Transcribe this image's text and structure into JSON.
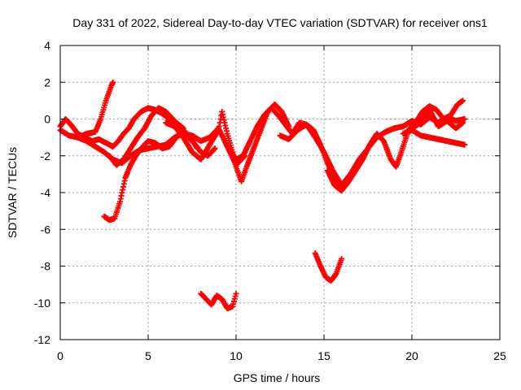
{
  "chart_data": {
    "type": "scatter",
    "title": "Day 331 of 2022, Sidereal Day-to-day VTEC variation (SDTVAR) for receiver ons1",
    "xlabel": "GPS time / hours",
    "ylabel": "SDTVAR / TECUs",
    "xlim": [
      0,
      25
    ],
    "ylim": [
      -12,
      4
    ],
    "xticks": [
      0,
      5,
      10,
      15,
      20,
      25
    ],
    "yticks": [
      -12,
      -10,
      -8,
      -6,
      -4,
      -2,
      0,
      2,
      4
    ],
    "grid": true,
    "marker": "+",
    "color": "#ff0000",
    "series": [
      {
        "name": "track-a",
        "x": [
          0.0,
          0.5,
          1.0,
          1.5,
          2.0,
          2.3,
          2.6,
          2.9,
          3.0
        ],
        "y": [
          -0.6,
          -0.9,
          -1.0,
          -0.8,
          -0.7,
          0.0,
          1.0,
          1.8,
          2.0
        ]
      },
      {
        "name": "track-b",
        "x": [
          0.0,
          0.3,
          0.6,
          1.0,
          1.4,
          1.8,
          2.2,
          2.6,
          3.0,
          3.3,
          3.6,
          3.9,
          4.2,
          4.6,
          5.0,
          5.4,
          5.8,
          6.2,
          6.6,
          7.0
        ],
        "y": [
          -0.4,
          0.0,
          -0.3,
          -0.8,
          -1.0,
          -1.2,
          -1.1,
          -1.3,
          -1.5,
          -1.2,
          -0.8,
          -0.5,
          0.0,
          0.4,
          0.6,
          0.5,
          0.3,
          0.0,
          -0.2,
          -0.5
        ]
      },
      {
        "name": "track-c",
        "x": [
          2.5,
          2.8,
          3.1,
          3.4,
          3.7,
          4.0,
          4.3,
          4.6,
          5.0,
          5.4,
          5.8,
          6.2,
          6.6,
          7.0,
          7.4,
          7.8
        ],
        "y": [
          -5.3,
          -5.5,
          -5.4,
          -4.5,
          -3.2,
          -2.5,
          -2.0,
          -1.6,
          -1.2,
          -1.3,
          -1.6,
          -1.5,
          -1.0,
          -0.6,
          -1.0,
          -1.6
        ]
      },
      {
        "name": "track-d",
        "x": [
          2.8,
          3.2,
          3.6,
          4.0,
          4.4,
          4.8,
          5.2,
          5.6,
          6.0,
          6.4,
          6.8,
          7.2,
          7.6,
          8.0,
          8.4,
          8.8
        ],
        "y": [
          -2.0,
          -2.5,
          -2.2,
          -1.6,
          -1.0,
          -0.5,
          0.2,
          0.6,
          0.4,
          0.0,
          -0.4,
          -0.9,
          -1.3,
          -1.8,
          -2.0,
          -1.6
        ]
      },
      {
        "name": "track-e",
        "x": [
          1.0,
          1.5,
          2.0,
          2.5,
          3.0,
          3.5,
          4.0,
          4.5,
          5.0,
          5.5,
          6.0,
          6.5,
          7.0,
          7.5,
          8.0,
          8.5,
          9.0,
          9.5,
          10.0,
          10.5
        ],
        "y": [
          -1.0,
          -1.2,
          -1.5,
          -1.8,
          -2.2,
          -2.4,
          -2.0,
          -1.7,
          -1.6,
          -1.5,
          -1.4,
          -1.0,
          -0.8,
          -0.9,
          -1.2,
          -1.0,
          -0.5,
          -1.5,
          -2.5,
          -2.0
        ]
      },
      {
        "name": "track-f",
        "x": [
          6.0,
          6.5,
          7.0,
          7.5,
          8.0,
          8.5,
          9.0,
          9.2,
          9.5,
          9.8,
          10.0,
          10.3,
          10.6,
          11.0,
          11.4,
          11.8,
          12.2,
          12.6,
          13.0
        ],
        "y": [
          -0.2,
          -0.4,
          -1.0,
          -1.8,
          -2.2,
          -1.4,
          -0.6,
          0.4,
          -0.8,
          -1.8,
          -2.6,
          -3.4,
          -2.6,
          -1.6,
          -0.6,
          0.4,
          0.8,
          0.4,
          -0.4
        ]
      },
      {
        "name": "track-g",
        "x": [
          9.6,
          10.0,
          10.4,
          10.8,
          11.2,
          11.6,
          12.0,
          12.4,
          12.8,
          13.2,
          13.6,
          14.0,
          14.4,
          14.8,
          15.2,
          15.6,
          16.0,
          16.4
        ],
        "y": [
          -1.6,
          -2.2,
          -2.0,
          -1.2,
          -0.4,
          0.2,
          0.6,
          0.2,
          -0.3,
          -0.8,
          -0.2,
          -0.3,
          -0.6,
          -1.4,
          -2.4,
          -3.2,
          -3.8,
          -3.2
        ]
      },
      {
        "name": "track-h",
        "x": [
          12.5,
          13.0,
          13.5,
          14.0,
          14.5,
          15.0,
          15.5,
          16.0,
          16.5,
          17.0,
          17.5,
          18.0,
          18.5,
          19.0,
          19.5,
          20.0,
          20.5,
          21.0,
          21.5,
          22.0,
          22.5,
          23.0
        ],
        "y": [
          -0.9,
          -1.1,
          -0.6,
          -0.3,
          -1.0,
          -1.8,
          -2.8,
          -3.6,
          -3.0,
          -2.2,
          -1.6,
          -1.0,
          -0.7,
          -0.5,
          -0.4,
          -0.1,
          -0.3,
          0.1,
          -0.2,
          0.1,
          -0.1,
          0.0
        ]
      },
      {
        "name": "track-i",
        "x": [
          15.2,
          15.6,
          16.0,
          16.4,
          16.8,
          17.2,
          17.6,
          18.0,
          18.4,
          18.8,
          19.1,
          19.4,
          19.8,
          20.2,
          20.6,
          21.0,
          21.4,
          21.8,
          22.2,
          22.6,
          22.9
        ],
        "y": [
          -2.8,
          -3.6,
          -3.9,
          -3.4,
          -2.8,
          -2.2,
          -1.4,
          -0.8,
          -1.2,
          -2.2,
          -2.6,
          -1.8,
          -0.6,
          -0.2,
          0.4,
          0.7,
          0.5,
          0.0,
          0.2,
          0.8,
          1.0
        ]
      },
      {
        "name": "track-j",
        "x": [
          19.5,
          20.0,
          20.5,
          21.0,
          21.5,
          22.0,
          22.5,
          23.0
        ],
        "y": [
          -0.8,
          -0.6,
          -0.9,
          -1.0,
          -1.1,
          -1.2,
          -1.3,
          -1.4
        ]
      },
      {
        "name": "track-k",
        "x": [
          20.0,
          20.5,
          21.0,
          21.5,
          22.0,
          22.5,
          22.9
        ],
        "y": [
          -0.5,
          -0.2,
          0.5,
          -0.4,
          -0.1,
          -0.5,
          -0.2
        ]
      },
      {
        "name": "track-l",
        "x": [
          8.0,
          8.3,
          8.6,
          8.9,
          9.2,
          9.5,
          9.8,
          10.0
        ],
        "y": [
          -9.5,
          -9.8,
          -10.1,
          -9.6,
          -9.8,
          -10.3,
          -10.2,
          -9.5
        ]
      },
      {
        "name": "track-m",
        "x": [
          14.5,
          14.8,
          15.1,
          15.4,
          15.7,
          16.0
        ],
        "y": [
          -7.3,
          -8.0,
          -8.6,
          -8.8,
          -8.4,
          -7.6
        ]
      }
    ]
  }
}
